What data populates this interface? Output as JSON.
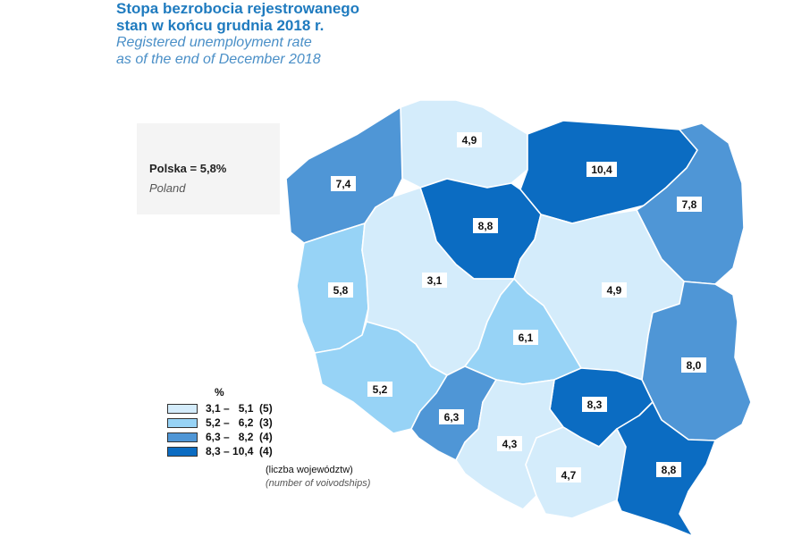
{
  "title": {
    "pl_line1": "Stopa bezrobocia rejestrowanego",
    "pl_line2": "stan w końcu grudnia 2018 r.",
    "en_line1": "Registered unemployment rate",
    "en_line2": "as of the end of  December 2018"
  },
  "national": {
    "label_pl": "Polska = 5,8%",
    "label_en": "Poland"
  },
  "legend": {
    "unit": "%",
    "classes": [
      {
        "label": "3,1 –   5,1  (5)",
        "color": "#d4ecfb"
      },
      {
        "label": "5,2 –   6,2  (3)",
        "color": "#97d3f6"
      },
      {
        "label": "6,3 –   8,2  (4)",
        "color": "#4f96d6"
      },
      {
        "label": "8,3 – 10,4  (4)",
        "color": "#0b6cc2"
      }
    ],
    "count_note_pl": "(liczba województw)",
    "count_note_en": "(number of voivodships)"
  },
  "regions": [
    {
      "id": "pomorskie",
      "value": "4,9",
      "class": 0
    },
    {
      "id": "warminsko-mazurskie",
      "value": "10,4",
      "class": 3
    },
    {
      "id": "zachodniopomorskie",
      "value": "7,4",
      "class": 2
    },
    {
      "id": "kujawsko-pomorskie",
      "value": "8,8",
      "class": 3
    },
    {
      "id": "podlaskie",
      "value": "7,8",
      "class": 2
    },
    {
      "id": "lubuskie",
      "value": "5,8",
      "class": 1
    },
    {
      "id": "wielkopolskie",
      "value": "3,1",
      "class": 0
    },
    {
      "id": "mazowieckie",
      "value": "4,9",
      "class": 0
    },
    {
      "id": "lodzkie",
      "value": "6,1",
      "class": 1
    },
    {
      "id": "dolnoslaskie",
      "value": "5,2",
      "class": 1
    },
    {
      "id": "lubelskie",
      "value": "8,0",
      "class": 2
    },
    {
      "id": "opolskie",
      "value": "6,3",
      "class": 2
    },
    {
      "id": "swietokrzyskie",
      "value": "8,3",
      "class": 3
    },
    {
      "id": "slaskie",
      "value": "4,3",
      "class": 0
    },
    {
      "id": "malopolskie",
      "value": "4,7",
      "class": 0
    },
    {
      "id": "podkarpackie",
      "value": "8,8",
      "class": 3
    }
  ]
}
